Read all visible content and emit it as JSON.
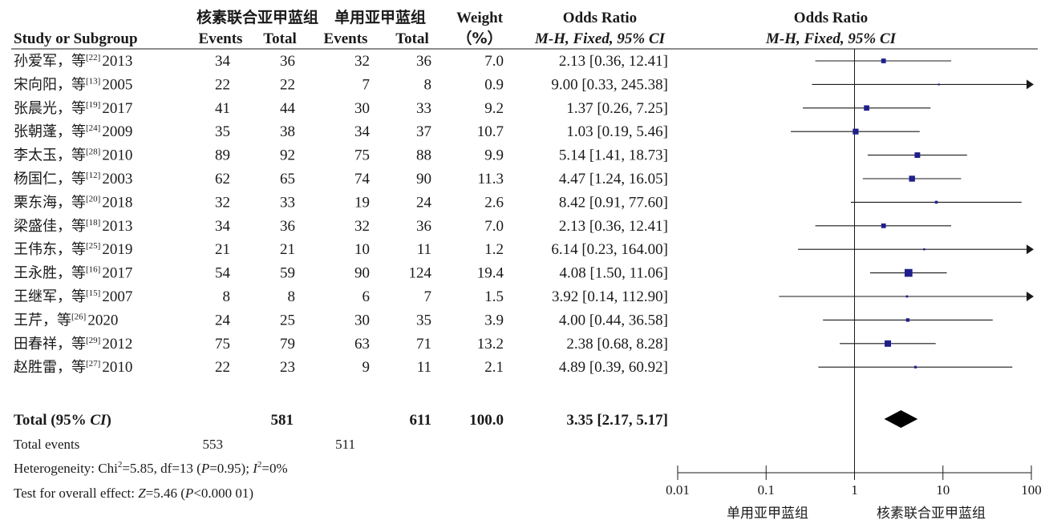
{
  "header": {
    "group1": "核素联合亚甲蓝组",
    "group2": "单用亚甲蓝组",
    "weight_title": "Weight",
    "weight_unit": "（%）",
    "or_title": "Odds Ratio",
    "or_method": "M-H, Fixed, 95% CI",
    "plot_title": "Odds Ratio",
    "plot_method": "M-H, Fixed, 95% CI",
    "study_col": "Study or Subgroup",
    "events_col": "Events",
    "total_col": "Total"
  },
  "studies": [
    {
      "name": "孙爱军，等",
      "ref": "[22]",
      "year": "2013",
      "e1": "34",
      "t1": "36",
      "e2": "32",
      "t2": "36",
      "weight": "7.0",
      "ci_text": "2.13 [0.36, 12.41]",
      "or": 2.13,
      "lo": 0.36,
      "hi": 12.41
    },
    {
      "name": "宋向阳，等",
      "ref": "[13]",
      "year": "2005",
      "e1": "22",
      "t1": "22",
      "e2": "7",
      "t2": "8",
      "weight": "0.9",
      "ci_text": "9.00 [0.33, 245.38]",
      "or": 9.0,
      "lo": 0.33,
      "hi": 245.38
    },
    {
      "name": "张晨光，等",
      "ref": "[19]",
      "year": "2017",
      "e1": "41",
      "t1": "44",
      "e2": "30",
      "t2": "33",
      "weight": "9.2",
      "ci_text": "1.37 [0.26, 7.25]",
      "or": 1.37,
      "lo": 0.26,
      "hi": 7.25
    },
    {
      "name": "张朝蓬，等",
      "ref": "[24]",
      "year": "2009",
      "e1": "35",
      "t1": "38",
      "e2": "34",
      "t2": "37",
      "weight": "10.7",
      "ci_text": "1.03 [0.19, 5.46]",
      "or": 1.03,
      "lo": 0.19,
      "hi": 5.46
    },
    {
      "name": "李太玉，等",
      "ref": "[28]",
      "year": "2010",
      "e1": "89",
      "t1": "92",
      "e2": "75",
      "t2": "88",
      "weight": "9.9",
      "ci_text": "5.14 [1.41, 18.73]",
      "or": 5.14,
      "lo": 1.41,
      "hi": 18.73
    },
    {
      "name": "杨国仁，等",
      "ref": "[12]",
      "year": "2003",
      "e1": "62",
      "t1": "65",
      "e2": "74",
      "t2": "90",
      "weight": "11.3",
      "ci_text": "4.47 [1.24, 16.05]",
      "or": 4.47,
      "lo": 1.24,
      "hi": 16.05
    },
    {
      "name": "栗东海，等",
      "ref": "[20]",
      "year": "2018",
      "e1": "32",
      "t1": "33",
      "e2": "19",
      "t2": "24",
      "weight": "2.6",
      "ci_text": "8.42 [0.91, 77.60]",
      "or": 8.42,
      "lo": 0.91,
      "hi": 77.6
    },
    {
      "name": "梁盛佳，等",
      "ref": "[18]",
      "year": "2013",
      "e1": "34",
      "t1": "36",
      "e2": "32",
      "t2": "36",
      "weight": "7.0",
      "ci_text": "2.13 [0.36, 12.41]",
      "or": 2.13,
      "lo": 0.36,
      "hi": 12.41
    },
    {
      "name": "王伟东，等",
      "ref": "[25]",
      "year": "2019",
      "e1": "21",
      "t1": "21",
      "e2": "10",
      "t2": "11",
      "weight": "1.2",
      "ci_text": "6.14 [0.23, 164.00]",
      "or": 6.14,
      "lo": 0.23,
      "hi": 164.0
    },
    {
      "name": "王永胜，等",
      "ref": "[16]",
      "year": "2017",
      "e1": "54",
      "t1": "59",
      "e2": "90",
      "t2": "124",
      "weight": "19.4",
      "ci_text": "4.08 [1.50, 11.06]",
      "or": 4.08,
      "lo": 1.5,
      "hi": 11.06
    },
    {
      "name": "王继军，等",
      "ref": "[15]",
      "year": "2007",
      "e1": "8",
      "t1": "8",
      "e2": "6",
      "t2": "7",
      "weight": "1.5",
      "ci_text": "3.92 [0.14, 112.90]",
      "or": 3.92,
      "lo": 0.14,
      "hi": 112.9
    },
    {
      "name": "王芹，等",
      "ref": "[26]",
      "year": "2020",
      "e1": "24",
      "t1": "25",
      "e2": "30",
      "t2": "35",
      "weight": "3.9",
      "ci_text": "4.00 [0.44, 36.58]",
      "or": 4.0,
      "lo": 0.44,
      "hi": 36.58
    },
    {
      "name": "田春祥，等",
      "ref": "[29]",
      "year": "2012",
      "e1": "75",
      "t1": "79",
      "e2": "63",
      "t2": "71",
      "weight": "13.2",
      "ci_text": "2.38 [0.68, 8.28]",
      "or": 2.38,
      "lo": 0.68,
      "hi": 8.28
    },
    {
      "name": "赵胜雷，等",
      "ref": "[27]",
      "year": "2010",
      "e1": "22",
      "t1": "23",
      "e2": "9",
      "t2": "11",
      "weight": "2.1",
      "ci_text": "4.89 [0.39, 60.92]",
      "or": 4.89,
      "lo": 0.39,
      "hi": 60.92
    }
  ],
  "total": {
    "label_pre": "Total (95% ",
    "label_ci": "CI",
    "label_post": ")",
    "t1": "581",
    "t2": "611",
    "weight": "100.0",
    "ci_text": "3.35 [2.17, 5.17]",
    "or": 3.35,
    "lo": 2.17,
    "hi": 5.17
  },
  "total_events": {
    "label": "Total events",
    "e1": "553",
    "e2": "511"
  },
  "heterogeneity": {
    "p1": "Heterogeneity: Chi",
    "sup1": "2",
    "p2": "=5.85, df=13 (",
    "pvar": "P",
    "p3": "=0.95); ",
    "ivar": "I",
    "sup2": "2",
    "p4": "=0%"
  },
  "overall": {
    "p1": "Test for overall effect: ",
    "zvar": "Z",
    "p2": "=5.46 (",
    "pvar": "P",
    "p3": "<0.000 01)"
  },
  "chart_data": {
    "type": "forest",
    "x_scale": "log",
    "xlim": [
      0.01,
      100
    ],
    "xticks": [
      "0.01",
      "0.1",
      "1",
      "10",
      "100"
    ],
    "reference_line": 1,
    "xlabel_left": "单用亚甲蓝组",
    "xlabel_right": "核素联合亚甲蓝组",
    "marker_color": "#1f1f8c"
  }
}
